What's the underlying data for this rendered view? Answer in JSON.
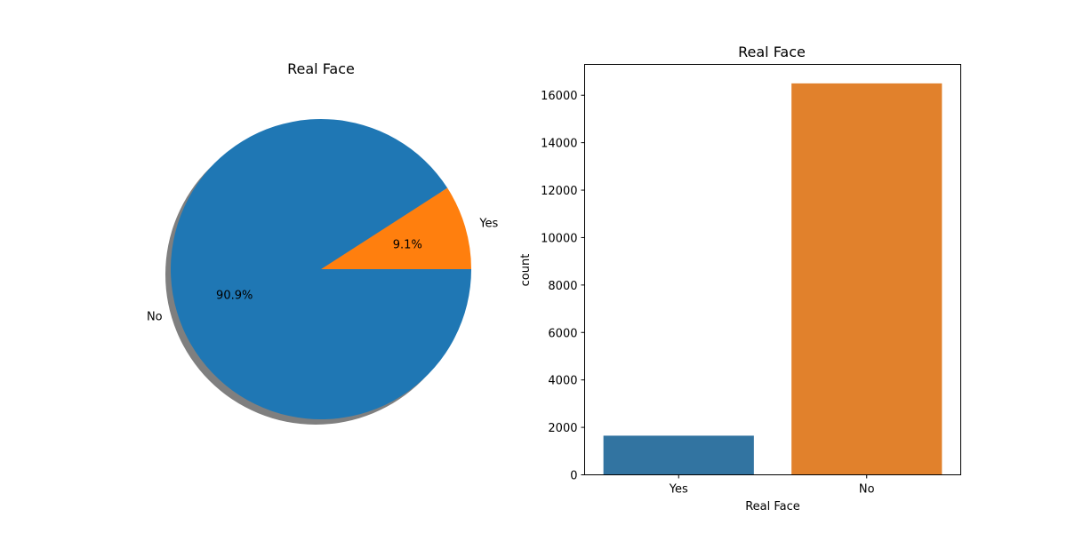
{
  "chart_data": [
    {
      "type": "pie",
      "title": "Real Face",
      "slices": [
        {
          "label": "Yes",
          "value": 9.1,
          "pct_label": "9.1%",
          "color": "#ff7f0e"
        },
        {
          "label": "No",
          "value": 90.9,
          "pct_label": "90.9%",
          "color": "#1f77b4"
        }
      ],
      "shadow": true
    },
    {
      "type": "bar",
      "title": "Real Face",
      "xlabel": "Real Face",
      "ylabel": "count",
      "categories": [
        "Yes",
        "No"
      ],
      "values": [
        1650,
        16500
      ],
      "colors": [
        "#3274a1",
        "#e1812c"
      ],
      "ylim": [
        0,
        17300
      ],
      "yticks": [
        0,
        2000,
        4000,
        6000,
        8000,
        10000,
        12000,
        14000,
        16000
      ],
      "grid": false
    }
  ]
}
